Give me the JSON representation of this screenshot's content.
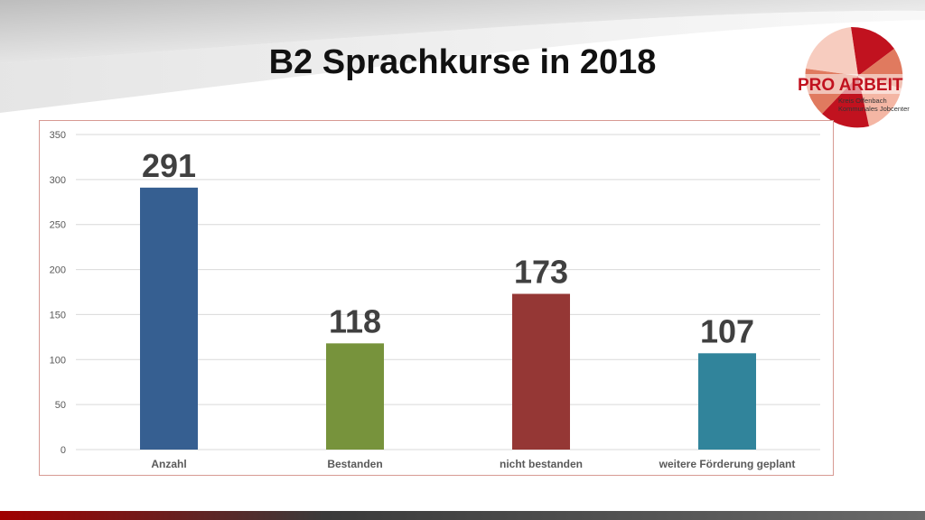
{
  "slide": {
    "title": "B2 Sprachkurse in 2018"
  },
  "logo": {
    "name": "PRO ARBEIT",
    "line1": "Kreis Offenbach",
    "line2": "Kommunales Jobcenter",
    "colors": [
      "#c1121f",
      "#e07a5f",
      "#f4b6a4"
    ]
  },
  "colors": {
    "accent": "#c1121f",
    "dark_band": "#4a4a4a"
  },
  "chart_data": {
    "type": "bar",
    "title": "",
    "xlabel": "",
    "ylabel": "",
    "categories": [
      "Anzahl",
      "Bestanden",
      "nicht bestanden",
      "weitere Förderung geplant"
    ],
    "values": [
      291,
      118,
      173,
      107
    ],
    "data_labels": [
      "291",
      "118",
      "173",
      "107"
    ],
    "colors": [
      "#365f91",
      "#77933c",
      "#953735",
      "#31849b"
    ],
    "ylim": [
      0,
      350
    ],
    "yticks": [
      0,
      50,
      100,
      150,
      200,
      250,
      300,
      350
    ],
    "grid": true,
    "legend": "none"
  }
}
